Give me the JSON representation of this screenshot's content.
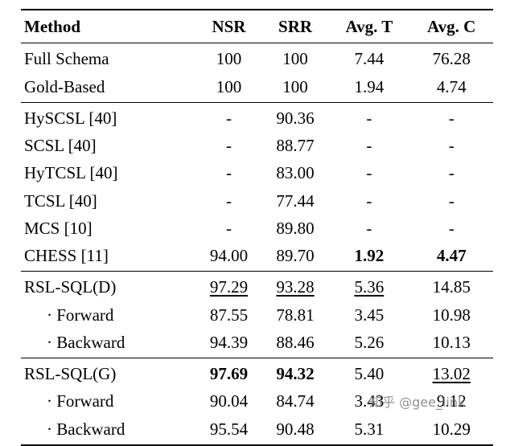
{
  "table": {
    "headers": [
      "Method",
      "NSR",
      "SRR",
      "Avg. T",
      "Avg. C"
    ],
    "groups": [
      {
        "rows": [
          {
            "method": "Full Schema",
            "indent": false,
            "values": [
              "100",
              "100",
              "7.44",
              "76.28"
            ],
            "styles": [
              "",
              "",
              "",
              ""
            ]
          },
          {
            "method": "Gold-Based",
            "indent": false,
            "values": [
              "100",
              "100",
              "1.94",
              "4.74"
            ],
            "styles": [
              "",
              "",
              "",
              ""
            ]
          }
        ]
      },
      {
        "rows": [
          {
            "method": "HySCSL [40]",
            "indent": false,
            "values": [
              "-",
              "90.36",
              "-",
              "-"
            ],
            "styles": [
              "",
              "",
              "",
              ""
            ]
          },
          {
            "method": "SCSL [40]",
            "indent": false,
            "values": [
              "-",
              "88.77",
              "-",
              "-"
            ],
            "styles": [
              "",
              "",
              "",
              ""
            ]
          },
          {
            "method": "HyTCSL [40]",
            "indent": false,
            "values": [
              "-",
              "83.00",
              "-",
              "-"
            ],
            "styles": [
              "",
              "",
              "",
              ""
            ]
          },
          {
            "method": "TCSL [40]",
            "indent": false,
            "values": [
              "-",
              "77.44",
              "-",
              "-"
            ],
            "styles": [
              "",
              "",
              "",
              ""
            ]
          },
          {
            "method": "MCS [10]",
            "indent": false,
            "values": [
              "-",
              "89.80",
              "-",
              "-"
            ],
            "styles": [
              "",
              "",
              "",
              ""
            ]
          },
          {
            "method": "CHESS [11]",
            "indent": false,
            "values": [
              "94.00",
              "89.70",
              "1.92",
              "4.47"
            ],
            "styles": [
              "",
              "",
              "b",
              "b"
            ]
          }
        ]
      },
      {
        "rows": [
          {
            "method": "RSL-SQL(D)",
            "indent": false,
            "values": [
              "97.29",
              "93.28",
              "5.36",
              "14.85"
            ],
            "styles": [
              "u",
              "u",
              "u",
              ""
            ]
          },
          {
            "method": "· Forward",
            "indent": true,
            "values": [
              "87.55",
              "78.81",
              "3.45",
              "10.98"
            ],
            "styles": [
              "",
              "",
              "",
              ""
            ]
          },
          {
            "method": "· Backward",
            "indent": true,
            "values": [
              "94.39",
              "88.46",
              "5.26",
              "10.13"
            ],
            "styles": [
              "",
              "",
              "",
              ""
            ]
          }
        ]
      },
      {
        "rows": [
          {
            "method": "RSL-SQL(G)",
            "indent": false,
            "values": [
              "97.69",
              "94.32",
              "5.40",
              "13.02"
            ],
            "styles": [
              "b",
              "b",
              "",
              "u"
            ]
          },
          {
            "method": "· Forward",
            "indent": true,
            "values": [
              "90.04",
              "84.74",
              "3.43",
              "9.12"
            ],
            "styles": [
              "",
              "",
              "",
              ""
            ]
          },
          {
            "method": "· Backward",
            "indent": true,
            "values": [
              "95.54",
              "90.48",
              "5.31",
              "10.29"
            ],
            "styles": [
              "",
              "",
              "",
              ""
            ]
          }
        ]
      }
    ]
  },
  "watermark": {
    "text": "知乎 @gee_link"
  }
}
